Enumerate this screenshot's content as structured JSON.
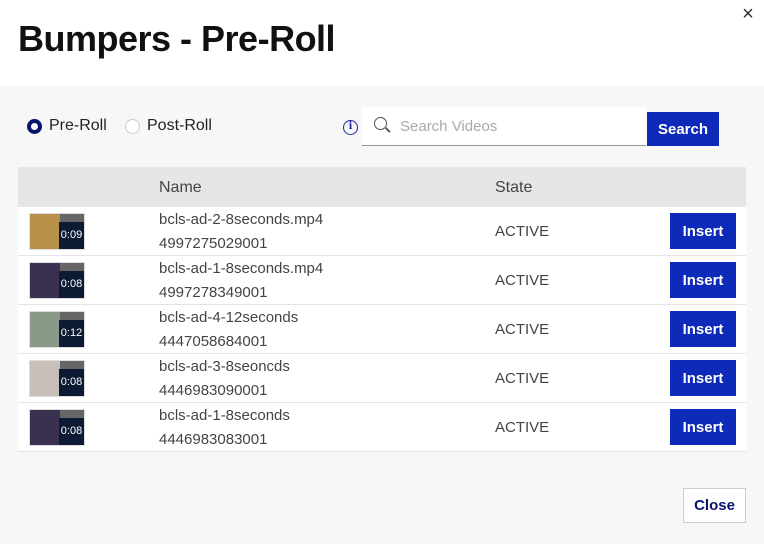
{
  "title": "Bumpers - Pre-Roll",
  "close_icon": "×",
  "radios": [
    {
      "label": "Pre-Roll",
      "checked": true
    },
    {
      "label": "Post-Roll",
      "checked": false
    }
  ],
  "info_icon": "i",
  "search": {
    "placeholder": "Search Videos",
    "value": "",
    "button": "Search"
  },
  "table": {
    "headers": {
      "name": "Name",
      "state": "State"
    },
    "rows": [
      {
        "name": "bcls-ad-2-8seconds.mp4",
        "id": "4997275029001",
        "duration": "0:09",
        "state": "ACTIVE",
        "action": "Insert",
        "thumb_color": "#b8904a"
      },
      {
        "name": "bcls-ad-1-8seconds.mp4",
        "id": "4997278349001",
        "duration": "0:08",
        "state": "ACTIVE",
        "action": "Insert",
        "thumb_color": "#3a3050"
      },
      {
        "name": "bcls-ad-4-12seconds",
        "id": "4447058684001",
        "duration": "0:12",
        "state": "ACTIVE",
        "action": "Insert",
        "thumb_color": "#8a9a88"
      },
      {
        "name": "bcls-ad-3-8seoncds",
        "id": "4446983090001",
        "duration": "0:08",
        "state": "ACTIVE",
        "action": "Insert",
        "thumb_color": "#c8c0b8"
      },
      {
        "name": "bcls-ad-1-8seconds",
        "id": "4446983083001",
        "duration": "0:08",
        "state": "ACTIVE",
        "action": "Insert",
        "thumb_color": "#3a3050"
      }
    ]
  },
  "footer": {
    "close": "Close"
  }
}
